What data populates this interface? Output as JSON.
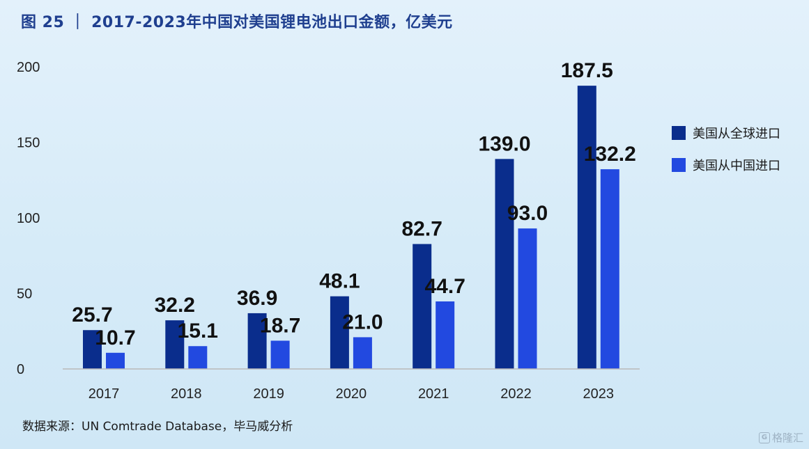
{
  "title": "图 25 ｜ 2017-2023年中国对美国锂电池出口金额，亿美元",
  "source": "数据来源：UN Comtrade Database，毕马威分析",
  "watermark": "格隆汇",
  "colors": {
    "series1": "#0a2d8c",
    "series2": "#2249e0",
    "axis": "#b9b9b9"
  },
  "chart_data": {
    "type": "bar",
    "categories": [
      "2017",
      "2018",
      "2019",
      "2020",
      "2021",
      "2022",
      "2023"
    ],
    "series": [
      {
        "name": "美国从全球进口",
        "values": [
          25.7,
          32.2,
          36.9,
          48.1,
          82.7,
          139.0,
          187.5
        ]
      },
      {
        "name": "美国从中国进口",
        "values": [
          10.7,
          15.1,
          18.7,
          21.0,
          44.7,
          93.0,
          132.2
        ]
      }
    ],
    "ylim": [
      0,
      200
    ],
    "yticks": [
      0,
      50,
      100,
      150,
      200
    ],
    "xlabel": "",
    "ylabel": "",
    "grid": false,
    "legend_position": "right"
  }
}
